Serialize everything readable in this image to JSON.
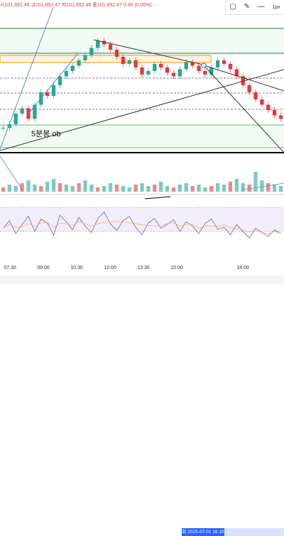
{
  "legend": {
    "open_label": "시",
    "open": "101,892.46",
    "high_label": "고",
    "high": "101,892.47",
    "low_label": "저",
    "low": "101,892.46",
    "close_label": "종",
    "close": "101,892.47",
    "change": "0.00 (0.00%)"
  },
  "toolbar": {
    "square_icon": "square-icon",
    "pencil_icon": "pencil-icon",
    "stroke_width": "1px",
    "stroke_dash": "—"
  },
  "annotation": {
    "ob_text": "5분봉 ob"
  },
  "time_axis": {
    "ticks": [
      "07:30",
      "09:00",
      "10:30",
      "12:00",
      "13:30",
      "15:00",
      "18:00"
    ],
    "crosshair_label": "화 2025-07-01 16:10"
  },
  "colors": {
    "candle_up": "#26a69a",
    "candle_down": "#e53935",
    "trendline": "#000000",
    "zone_green": "#4caf50",
    "zone_orange": "#ffa726",
    "rsi_line": "#5c6bc0",
    "rsi_signal": "#ffb74d",
    "rsi_band": "#ede7f6",
    "accent": "#2962ff"
  },
  "chart_data": {
    "type": "line",
    "price_series": [
      50,
      52,
      58,
      61,
      55,
      63,
      70,
      68,
      74,
      79,
      82,
      85,
      88,
      91,
      95,
      99,
      97,
      94,
      90,
      86,
      88,
      84,
      80,
      82,
      86,
      84,
      81,
      79,
      83,
      87,
      85,
      82,
      80,
      84,
      88,
      86,
      83,
      79,
      74,
      70,
      66,
      63,
      60,
      57,
      55
    ],
    "rsi_series": [
      48,
      62,
      38,
      55,
      70,
      42,
      65,
      58,
      35,
      72,
      60,
      45,
      68,
      52,
      40,
      66,
      78,
      56,
      44,
      62,
      70,
      50,
      36,
      58,
      66,
      48,
      55,
      64,
      42,
      60,
      52,
      38,
      57,
      65,
      46,
      50,
      36,
      55,
      42,
      30,
      48,
      40,
      33,
      45,
      38
    ],
    "volume_series": [
      3,
      5,
      4,
      6,
      8,
      5,
      4,
      7,
      9,
      6,
      5,
      4,
      6,
      8,
      5,
      3,
      4,
      6,
      5,
      4,
      3,
      5,
      6,
      4,
      5,
      7,
      4,
      3,
      5,
      6,
      4,
      5,
      3,
      4,
      6,
      5,
      7,
      9,
      6,
      5,
      14,
      8,
      6,
      5,
      4
    ]
  }
}
